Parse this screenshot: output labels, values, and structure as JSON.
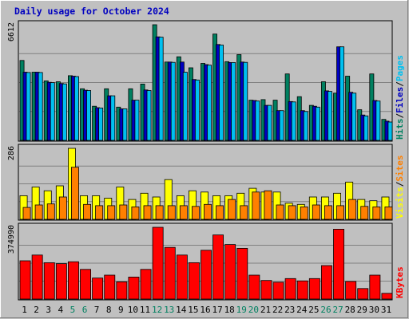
{
  "chart_data": {
    "title": "Daily usage for October 2024",
    "type": "bar",
    "days": [
      "1",
      "2",
      "3",
      "4",
      "5",
      "6",
      "7",
      "8",
      "9",
      "10",
      "11",
      "12",
      "13",
      "14",
      "15",
      "16",
      "17",
      "18",
      "19",
      "20",
      "21",
      "22",
      "23",
      "24",
      "25",
      "26",
      "27",
      "28",
      "29",
      "30",
      "31"
    ],
    "weekend_days": [
      "5",
      "6",
      "12",
      "13",
      "19",
      "20",
      "26",
      "27"
    ],
    "colors": {
      "background": "#c0c0c0",
      "title": "#0000c0",
      "weekday_label": "#000000",
      "weekend_label": "#008060",
      "hits": "#008060",
      "files": "#00c0f0",
      "pages": "#00c0f0",
      "visits": "#ffff00",
      "sites": "#ff8000",
      "kbytes": "#ff0000",
      "grid": "#808080"
    },
    "panels": [
      {
        "id": "hits",
        "ymax_label": "6612",
        "ylim": [
          0,
          6612
        ],
        "legend": [
          {
            "text": "Hits",
            "color": "#008060"
          },
          {
            "text": "/",
            "color": "#000000"
          },
          {
            "text": "Files",
            "color": "#0000c0"
          },
          {
            "text": "/",
            "color": "#000000"
          },
          {
            "text": "Pages",
            "color": "#00c0f0"
          }
        ],
        "series": [
          {
            "name": "Hits",
            "color": "#008060",
            "values": [
              4570,
              3900,
              3400,
              3350,
              3700,
              2950,
              1950,
              2950,
              1900,
              2950,
              3220,
              6612,
              4480,
              4780,
              4150,
              4400,
              6080,
              4500,
              4900,
              2300,
              2330,
              2300,
              3800,
              2500,
              2000,
              3350,
              2700,
              3670,
              1750,
              3800,
              1200
            ]
          },
          {
            "name": "Files",
            "color": "#0000c0",
            "values": [
              3900,
              3900,
              3320,
              3250,
              3670,
              2870,
              1870,
              2550,
              1800,
              2300,
              2880,
              5920,
              4480,
              4480,
              3480,
              4330,
              5480,
              4450,
              4480,
              2280,
              2000,
              1700,
              2220,
              1700,
              1950,
              2830,
              5350,
              2750,
              1450,
              2280,
              1100
            ]
          },
          {
            "name": "Pages",
            "color": "#00c0f0",
            "values": [
              3880,
              3880,
              3300,
              3230,
              3650,
              2850,
              1850,
              2550,
              1800,
              2300,
              2850,
              5900,
              4460,
              3900,
              3450,
              4300,
              5450,
              4450,
              4460,
              2250,
              2000,
              1700,
              2200,
              1650,
              1900,
              2800,
              5350,
              2700,
              1400,
              2250,
              1050
            ]
          }
        ]
      },
      {
        "id": "visits",
        "ymax_label": "286",
        "ylim": [
          0,
          286
        ],
        "legend": [
          {
            "text": "Visits",
            "color": "#ffff00"
          },
          {
            "text": "/",
            "color": "#000000"
          },
          {
            "text": "Sites",
            "color": "#ff8000"
          }
        ],
        "series": [
          {
            "name": "Visits",
            "color": "#ffff00",
            "values": [
              95,
              130,
              115,
              135,
              286,
              95,
              95,
              85,
              130,
              80,
              105,
              90,
              160,
              95,
              115,
              110,
              95,
              95,
              105,
              125,
              110,
              110,
              65,
              60,
              90,
              90,
              105,
              150,
              80,
              75,
              90
            ]
          },
          {
            "name": "Sites",
            "color": "#ff8000",
            "values": [
              48,
              58,
              62,
              90,
              210,
              60,
              55,
              55,
              58,
              50,
              55,
              55,
              55,
              55,
              52,
              60,
              55,
              80,
              55,
              110,
              115,
              58,
              55,
              50,
              58,
              55,
              55,
              80,
              52,
              50,
              50
            ]
          }
        ]
      },
      {
        "id": "kbytes",
        "ymax_label": "374990",
        "ylim": [
          0,
          374990
        ],
        "legend": [
          {
            "text": "KBytes",
            "color": "#ff0000"
          }
        ],
        "series": [
          {
            "name": "KBytes",
            "color": "#ff0000",
            "values": [
              200000,
              230000,
              190000,
              185000,
              195000,
              155000,
              110000,
              125000,
              90000,
              115000,
              155000,
              374990,
              270000,
              230000,
              190000,
              255000,
              335000,
              285000,
              265000,
              125000,
              97000,
              88000,
              107000,
              95000,
              107000,
              175000,
              365000,
              92000,
              55000,
              125000,
              30000
            ]
          }
        ]
      }
    ]
  }
}
